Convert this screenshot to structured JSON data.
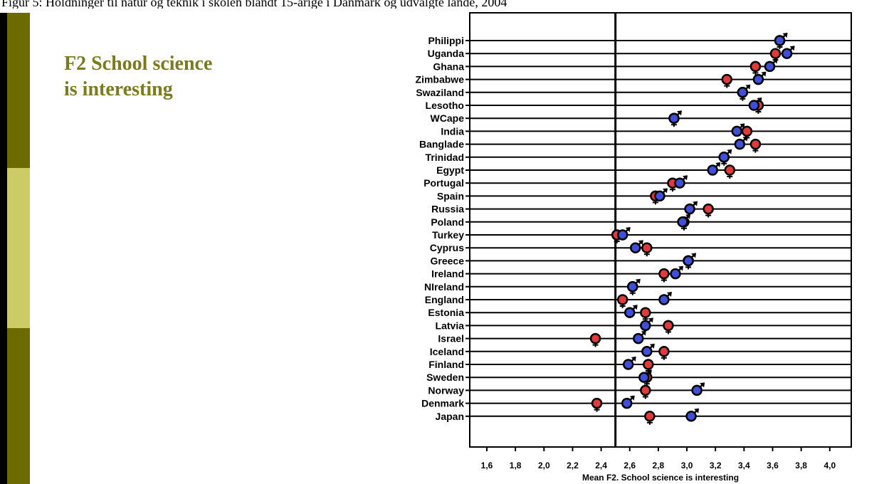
{
  "caption": "Figur 5: Holdninger til natur og teknik i skolen blandt 15-årige i Danmark og udvalgte lande, 2004",
  "slide": {
    "title_line1": "F2 School science",
    "title_line2": "is interesting",
    "colors": {
      "bar_dark": "#6b6b00",
      "bar_light": "#cccc66",
      "title": "#7b7b1e"
    }
  },
  "chart_data": {
    "type": "scatter",
    "title": "",
    "xlabel": "Mean F2. School science is interesting",
    "ylabel": "",
    "xlim": [
      1.5,
      4.1
    ],
    "xticks": [
      "1,6",
      "1,8",
      "2,0",
      "2,2",
      "2,4",
      "2,6",
      "2,8",
      "3,0",
      "3,2",
      "3,4",
      "3,6",
      "3,8",
      "4,0"
    ],
    "reference_line": 2.5,
    "grid": "horizontal lines per country",
    "categories": [
      "Philippi",
      "Uganda",
      "Ghana",
      "Zimbabwe",
      "Swaziland",
      "Lesotho",
      "WCape",
      "India",
      "Banglade",
      "Trinidad",
      "Egypt",
      "Portugal",
      "Spain",
      "Russia",
      "Poland",
      "Turkey",
      "Cyprus",
      "Greece",
      "Ireland",
      "NIreland",
      "England",
      "Estonia",
      "Latvia",
      "Israel",
      "Iceland",
      "Finland",
      "Sweden",
      "Norway",
      "Denmark",
      "Japan"
    ],
    "series": [
      {
        "marker": "male",
        "color": "#3f4fd8",
        "values": [
          3.65,
          3.7,
          3.58,
          3.5,
          3.39,
          3.47,
          2.91,
          3.35,
          3.37,
          3.26,
          3.18,
          2.95,
          2.81,
          3.02,
          2.97,
          2.55,
          2.64,
          3.01,
          2.92,
          2.62,
          2.84,
          2.6,
          2.71,
          2.66,
          2.72,
          2.59,
          2.7,
          3.07,
          2.58,
          3.03
        ]
      },
      {
        "marker": "female",
        "color": "#e03a3a",
        "values": [
          3.65,
          3.62,
          3.48,
          3.28,
          3.39,
          3.5,
          2.91,
          3.42,
          3.48,
          3.26,
          3.3,
          2.9,
          2.78,
          3.15,
          2.98,
          2.51,
          2.72,
          3.01,
          2.84,
          2.62,
          2.55,
          2.71,
          2.87,
          2.36,
          2.84,
          2.73,
          2.72,
          2.71,
          2.37,
          2.74
        ]
      }
    ]
  }
}
